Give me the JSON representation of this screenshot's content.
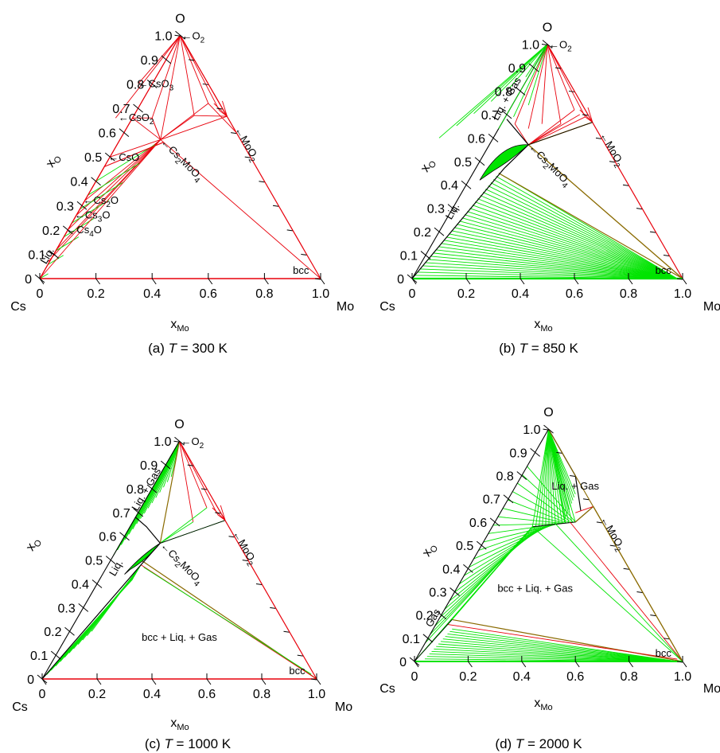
{
  "figure": {
    "axis_labels": {
      "x_main": "x",
      "x_sub": "Mo",
      "y_main": "x",
      "y_sub": "O"
    },
    "corners": {
      "top": "O",
      "left": "Cs",
      "right": "Mo"
    },
    "x_ticks": [
      "0",
      "0.2",
      "0.4",
      "0.6",
      "0.8",
      "1.0"
    ],
    "y_ticks": [
      "0",
      "0.1",
      "0.2",
      "0.3",
      "0.4",
      "0.5",
      "0.6",
      "0.7",
      "0.8",
      "0.9",
      "1.0"
    ],
    "colors": {
      "red": "#e8000b",
      "green": "#00e400",
      "olive": "#8a6a00",
      "black": "#000000"
    },
    "panels": [
      {
        "caption": {
          "prefix": "(a)",
          "var": "T",
          "rest": " = 300 K"
        },
        "labels": [
          "O2",
          "CsO3",
          "CsO2",
          "CsO",
          "Cs2O",
          "Cs3O",
          "Cs4O",
          "Liq.",
          "MoO2",
          "Cs2MoO4",
          "bcc"
        ]
      },
      {
        "caption": {
          "prefix": "(b)",
          "var": "T",
          "rest": " = 850 K"
        },
        "labels": [
          "O2",
          "Liq. + Gas",
          "Liq.",
          "MoO2",
          "Cs2MoO4",
          "bcc"
        ]
      },
      {
        "caption": {
          "prefix": "(c)",
          "var": "T",
          "rest": " = 1000 K"
        },
        "labels": [
          "O2",
          "Liq. + Gas",
          "Liq.",
          "MoO2",
          "Cs2MoO4",
          "bcc",
          "bcc + Liq. + Gas"
        ]
      },
      {
        "caption": {
          "prefix": "(d)",
          "var": "T",
          "rest": " = 2000 K"
        },
        "labels": [
          "Liq. + Gas",
          "Gas",
          "MoO2",
          "bcc",
          "bcc + Liq. + Gas"
        ]
      }
    ]
  }
}
